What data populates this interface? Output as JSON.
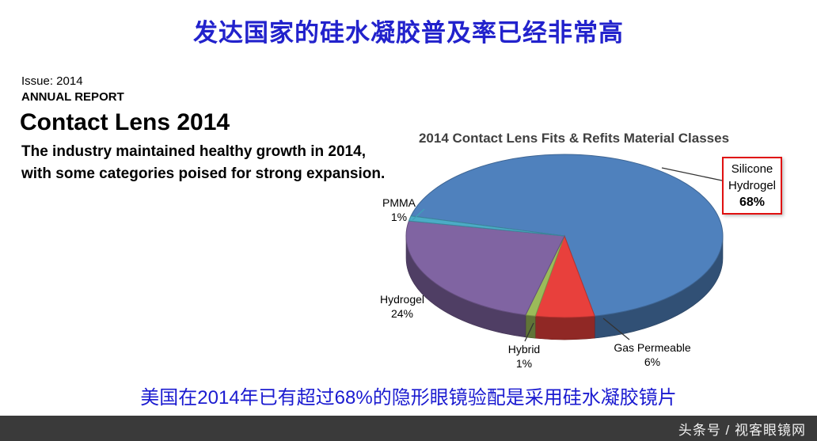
{
  "header": {
    "title": "发达国家的硅水凝胶普及率已经非常高"
  },
  "report": {
    "issue": "Issue: 2014",
    "annual_report": "ANNUAL REPORT",
    "title": "Contact Lens 2014",
    "description": "The industry maintained healthy growth in 2014, with some categories poised for strong expansion."
  },
  "chart_data": {
    "type": "pie",
    "style": "3d",
    "title": "2014 Contact Lens Fits & Refits Material Classes",
    "slices": [
      {
        "label": "Silicone Hydrogel",
        "value": 68,
        "pct": "68%",
        "color": "#4f81bd"
      },
      {
        "label": "PMMA",
        "value": 1,
        "pct": "1%",
        "color": "#4bacc6"
      },
      {
        "label": "Hydrogel",
        "value": 24,
        "pct": "24%",
        "color": "#8064a2"
      },
      {
        "label": "Hybrid",
        "value": 1,
        "pct": "1%",
        "color": "#9bbb59"
      },
      {
        "label": "Gas Permeable",
        "value": 6,
        "pct": "6%",
        "color": "#e8403c"
      }
    ],
    "callout": {
      "line1": "Silicone",
      "line2": "Hydrogel",
      "value": "68%"
    },
    "legend_position": "none",
    "accent_border_color": "#e01010"
  },
  "footer": {
    "caption": "美国在2014年已有超过68%的隐形眼镜验配是采用硅水凝胶镜片",
    "watermark": "头条号 / 视客眼镜网"
  }
}
